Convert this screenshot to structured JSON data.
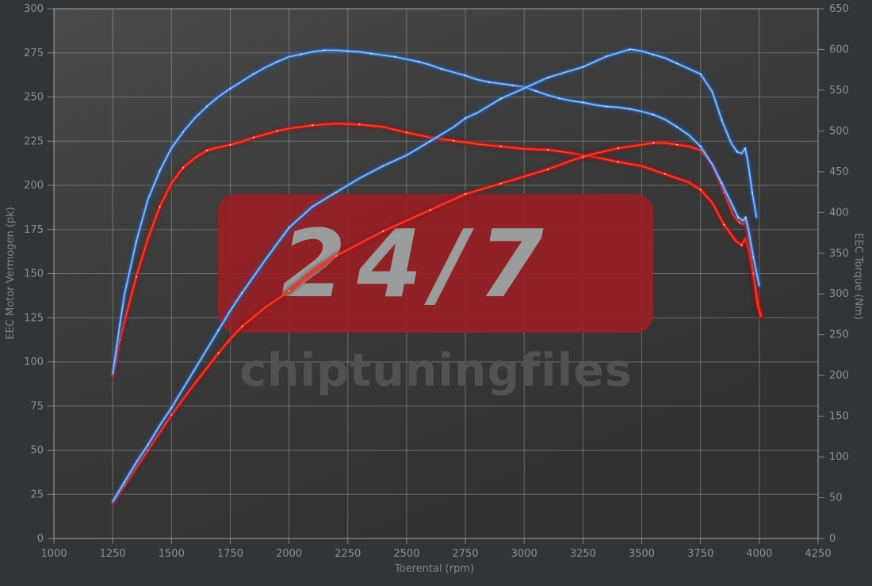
{
  "page": {
    "background": "#323436",
    "plot_bg_light": "#4a4a4a",
    "plot_bg_mid": "#3c3c3c",
    "plot_bg_dark": "#323232"
  },
  "axes": {
    "x": {
      "title": "Toerental (rpm)",
      "min": 1000,
      "max": 4250,
      "step": 250,
      "tick_labels": [
        "1000",
        "1250",
        "1500",
        "1750",
        "2000",
        "2250",
        "2500",
        "2750",
        "3000",
        "3250",
        "3500",
        "3750",
        "4000",
        "4250"
      ]
    },
    "y_left": {
      "title": "EEC Motor Vermogen (pk)",
      "min": 0,
      "max": 300,
      "step": 25,
      "tick_labels": [
        "0",
        "25",
        "50",
        "75",
        "100",
        "125",
        "150",
        "175",
        "200",
        "225",
        "250",
        "275",
        "300"
      ]
    },
    "y_right": {
      "title": "EEC Torque (Nm)",
      "min": 0,
      "max": 650,
      "step": 50,
      "tick_labels": [
        "0",
        "50",
        "100",
        "150",
        "200",
        "250",
        "300",
        "350",
        "400",
        "450",
        "500",
        "550",
        "600",
        "650"
      ]
    }
  },
  "watermark": {
    "badge_text": "24/7",
    "brand_text": "chiptuningfiles",
    "badge_color": "#9a2026",
    "badge_text_color": "#9c9c9c",
    "brand_text_color": "#525252"
  },
  "colors": {
    "grid": "rgba(230,230,230,0.30)",
    "frame": "rgba(230,230,230,0.45)",
    "tick_text": "#8f8f8f",
    "axis_title": "#848484",
    "blue_core": "#8fc0f4",
    "blue_mid": "#4585dc",
    "blue_glow": "#1c4f9e",
    "blue_dot": "#d4e8ff",
    "red_core": "#ff4030",
    "red_mid": "#e02318",
    "red_glow": "#911009",
    "red_dot": "#ffd0c8"
  },
  "chart_data": {
    "type": "line",
    "xlabel": "Toerental (rpm)",
    "ylabel_left": "EEC Motor Vermogen (pk)",
    "ylabel_right": "EEC Torque (Nm)",
    "x_range": [
      1000,
      4250
    ],
    "y_left_range": [
      0,
      300
    ],
    "y_right_range": [
      0,
      650
    ],
    "grid": true,
    "legend": "none",
    "series": [
      {
        "name": "torque-tuned-blue",
        "axis": "right",
        "color_role": "blue",
        "unit": "Nm",
        "points": [
          [
            1250,
            202
          ],
          [
            1280,
            262
          ],
          [
            1300,
            299
          ],
          [
            1350,
            364
          ],
          [
            1400,
            416
          ],
          [
            1450,
            451
          ],
          [
            1500,
            479
          ],
          [
            1550,
            499
          ],
          [
            1600,
            516
          ],
          [
            1650,
            530
          ],
          [
            1700,
            542
          ],
          [
            1750,
            552
          ],
          [
            1800,
            561
          ],
          [
            1850,
            570
          ],
          [
            1900,
            578
          ],
          [
            1950,
            585
          ],
          [
            2000,
            591
          ],
          [
            2050,
            594
          ],
          [
            2100,
            597
          ],
          [
            2150,
            599
          ],
          [
            2200,
            599
          ],
          [
            2250,
            598
          ],
          [
            2300,
            597
          ],
          [
            2350,
            595
          ],
          [
            2400,
            593
          ],
          [
            2450,
            591
          ],
          [
            2500,
            588
          ],
          [
            2550,
            585
          ],
          [
            2600,
            581
          ],
          [
            2650,
            576
          ],
          [
            2700,
            572
          ],
          [
            2750,
            568
          ],
          [
            2800,
            563
          ],
          [
            2850,
            560
          ],
          [
            2900,
            558
          ],
          [
            2950,
            556
          ],
          [
            3000,
            554
          ],
          [
            3050,
            549
          ],
          [
            3100,
            544
          ],
          [
            3150,
            540
          ],
          [
            3200,
            537
          ],
          [
            3250,
            535
          ],
          [
            3300,
            532
          ],
          [
            3350,
            530
          ],
          [
            3400,
            529
          ],
          [
            3450,
            527
          ],
          [
            3500,
            524
          ],
          [
            3550,
            520
          ],
          [
            3600,
            514
          ],
          [
            3650,
            505
          ],
          [
            3700,
            495
          ],
          [
            3750,
            481
          ],
          [
            3800,
            459
          ],
          [
            3840,
            436
          ],
          [
            3880,
            412
          ],
          [
            3910,
            394
          ],
          [
            3930,
            390
          ],
          [
            3942,
            394
          ],
          [
            3955,
            378
          ],
          [
            3975,
            345
          ],
          [
            4000,
            310
          ]
        ]
      },
      {
        "name": "torque-original-red",
        "axis": "right",
        "color_role": "red",
        "unit": "Nm",
        "points": [
          [
            1250,
            199
          ],
          [
            1280,
            243
          ],
          [
            1300,
            266
          ],
          [
            1350,
            321
          ],
          [
            1400,
            368
          ],
          [
            1450,
            407
          ],
          [
            1500,
            436
          ],
          [
            1550,
            455
          ],
          [
            1600,
            467
          ],
          [
            1650,
            476
          ],
          [
            1700,
            480
          ],
          [
            1750,
            483
          ],
          [
            1800,
            487
          ],
          [
            1850,
            492
          ],
          [
            1900,
            496
          ],
          [
            1950,
            500
          ],
          [
            2000,
            503
          ],
          [
            2100,
            507
          ],
          [
            2200,
            509
          ],
          [
            2300,
            508
          ],
          [
            2400,
            505
          ],
          [
            2500,
            498
          ],
          [
            2600,
            492
          ],
          [
            2700,
            488
          ],
          [
            2800,
            484
          ],
          [
            2900,
            481
          ],
          [
            3000,
            478
          ],
          [
            3100,
            477
          ],
          [
            3200,
            473
          ],
          [
            3250,
            470
          ],
          [
            3300,
            468
          ],
          [
            3400,
            462
          ],
          [
            3500,
            457
          ],
          [
            3600,
            447
          ],
          [
            3700,
            437
          ],
          [
            3750,
            428
          ],
          [
            3800,
            412
          ],
          [
            3850,
            385
          ],
          [
            3900,
            365
          ],
          [
            3925,
            360
          ],
          [
            3940,
            368
          ],
          [
            3955,
            353
          ],
          [
            3975,
            322
          ],
          [
            3990,
            294
          ],
          [
            4005,
            273
          ]
        ]
      },
      {
        "name": "power-tuned-blue",
        "axis": "left",
        "color_role": "blue",
        "unit": "pk",
        "points": [
          [
            1250,
            21
          ],
          [
            1300,
            32
          ],
          [
            1350,
            43
          ],
          [
            1400,
            53
          ],
          [
            1450,
            64
          ],
          [
            1500,
            74
          ],
          [
            1600,
            96
          ],
          [
            1700,
            118
          ],
          [
            1750,
            129
          ],
          [
            1800,
            139
          ],
          [
            1900,
            158
          ],
          [
            2000,
            176
          ],
          [
            2100,
            188
          ],
          [
            2200,
            196
          ],
          [
            2300,
            204
          ],
          [
            2400,
            211
          ],
          [
            2500,
            217
          ],
          [
            2600,
            225
          ],
          [
            2700,
            233
          ],
          [
            2750,
            238
          ],
          [
            2800,
            241
          ],
          [
            2900,
            249
          ],
          [
            3000,
            255
          ],
          [
            3100,
            261
          ],
          [
            3200,
            265
          ],
          [
            3250,
            267
          ],
          [
            3300,
            270
          ],
          [
            3350,
            273
          ],
          [
            3400,
            275
          ],
          [
            3450,
            277
          ],
          [
            3500,
            276
          ],
          [
            3550,
            274
          ],
          [
            3600,
            272
          ],
          [
            3650,
            269
          ],
          [
            3700,
            266
          ],
          [
            3750,
            263
          ],
          [
            3800,
            253
          ],
          [
            3840,
            237
          ],
          [
            3880,
            224
          ],
          [
            3905,
            219
          ],
          [
            3925,
            218
          ],
          [
            3940,
            221
          ],
          [
            3952,
            213
          ],
          [
            3970,
            196
          ],
          [
            3988,
            182
          ]
        ]
      },
      {
        "name": "power-original-red",
        "axis": "left",
        "color_role": "red",
        "unit": "pk",
        "points": [
          [
            1250,
            20
          ],
          [
            1300,
            30
          ],
          [
            1350,
            40
          ],
          [
            1400,
            50
          ],
          [
            1450,
            60
          ],
          [
            1500,
            70
          ],
          [
            1600,
            88
          ],
          [
            1700,
            105
          ],
          [
            1750,
            113
          ],
          [
            1800,
            120
          ],
          [
            1900,
            131
          ],
          [
            2000,
            140
          ],
          [
            2100,
            151
          ],
          [
            2200,
            160
          ],
          [
            2300,
            167
          ],
          [
            2400,
            174
          ],
          [
            2500,
            180
          ],
          [
            2600,
            186
          ],
          [
            2700,
            192
          ],
          [
            2750,
            195
          ],
          [
            2800,
            197
          ],
          [
            2900,
            201
          ],
          [
            3000,
            205
          ],
          [
            3100,
            209
          ],
          [
            3200,
            214
          ],
          [
            3250,
            216
          ],
          [
            3300,
            218
          ],
          [
            3400,
            221
          ],
          [
            3500,
            223
          ],
          [
            3550,
            224
          ],
          [
            3600,
            224
          ],
          [
            3650,
            223
          ],
          [
            3700,
            222
          ],
          [
            3750,
            220
          ],
          [
            3800,
            212
          ],
          [
            3850,
            196
          ],
          [
            3890,
            183
          ],
          [
            3915,
            179
          ],
          [
            3930,
            178
          ],
          [
            3942,
            180
          ],
          [
            3955,
            170
          ],
          [
            3975,
            150
          ],
          [
            3995,
            131
          ],
          [
            4008,
            126
          ]
        ]
      }
    ]
  }
}
